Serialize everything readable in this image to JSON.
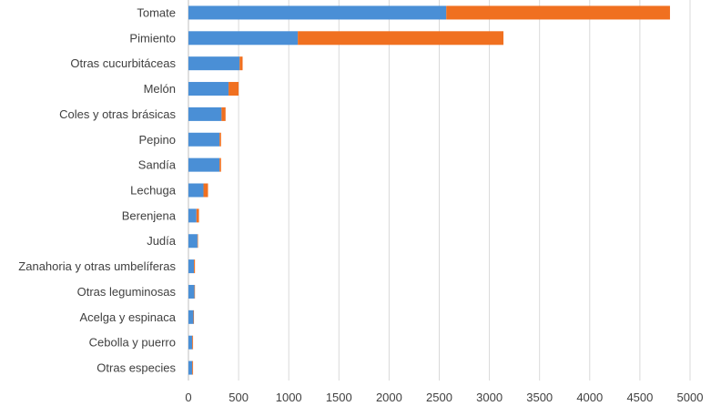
{
  "chart_data": {
    "type": "bar",
    "orientation": "horizontal",
    "stacked": true,
    "categories": [
      "Tomate",
      "Pimiento",
      "Otras cucurbitáceas",
      "Melón",
      "Coles y otras brásicas",
      "Pepino",
      "Sandía",
      "Lechuga",
      "Berenjena",
      "Judía",
      "Zanahoria y otras umbelíferas",
      "Otras leguminosas",
      "Acelga y espinaca",
      "Cebolla y puerro",
      "Otras especies"
    ],
    "series": [
      {
        "color": "#4a8fd6",
        "values": [
          2570,
          1090,
          510,
          400,
          330,
          310,
          310,
          150,
          80,
          90,
          55,
          60,
          50,
          38,
          38
        ]
      },
      {
        "color": "#f07020",
        "values": [
          2230,
          2050,
          30,
          100,
          40,
          15,
          15,
          45,
          25,
          5,
          10,
          5,
          5,
          8,
          8
        ]
      }
    ],
    "xlim": [
      0,
      5000
    ],
    "xticks": [
      0,
      500,
      1000,
      1500,
      2000,
      2500,
      3000,
      3500,
      4000,
      4500,
      5000
    ],
    "xtick_labels": [
      "0",
      "500",
      "1000",
      "1500",
      "2000",
      "2500",
      "3000",
      "3500",
      "4000",
      "4500",
      "5000"
    ],
    "grid": "vertical",
    "title": "",
    "xlabel": "",
    "ylabel": ""
  }
}
